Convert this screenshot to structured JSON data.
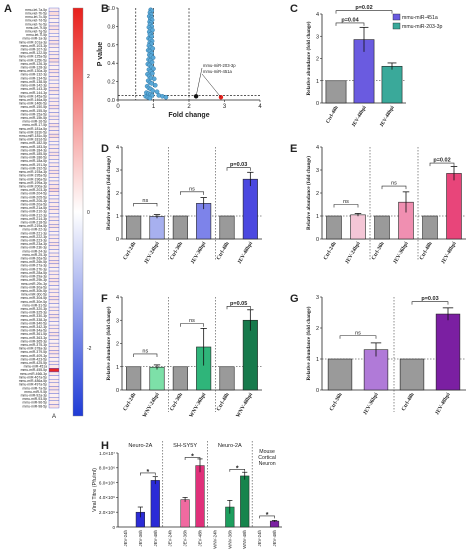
{
  "chart_data": [
    {
      "id": "A",
      "type": "heatmap",
      "panel_label": "A",
      "x_label": "A",
      "rows": [
        "mmu-let-7a-5p",
        "mmu-let-7b-5p",
        "mmu-let-7c-5p",
        "mmu-let-7d-5p",
        "mmu-let-7e-5p",
        "mmu-let-7f-5p",
        "mmu-let-7g-5p",
        "mmu-let-7i-5p",
        "mmu-miR-1a-3p",
        "mmu-miR-101a-3p",
        "mmu-miR-103-3p",
        "mmu-miR-107-3p",
        "mmu-miR-122-5p",
        "mmu-miR-125a-5p",
        "mmu-miR-125b-5p",
        "mmu-miR-126-3p",
        "mmu-miR-128-3p",
        "mmu-miR-130a-3p",
        "mmu-miR-132-3p",
        "mmu-miR-134-5p",
        "mmu-miR-138-5p",
        "mmu-miR-142-3p",
        "mmu-miR-143-3p",
        "mmu-miR-144-3p",
        "mmu-miR-145a-5p",
        "mmu-miR-146a-5p",
        "mmu-miR-146b-5p",
        "mmu-miR-150-5p",
        "mmu-miR-155-5p",
        "mmu-miR-15a-5p",
        "mmu-miR-15b-5p",
        "mmu-miR-16-5p",
        "mmu-miR-17-5p",
        "mmu-miR-181a-5p",
        "mmu-miR-181b-5p",
        "mmu-miR-181c-5p",
        "mmu-miR-181d-5p",
        "mmu-miR-182-5p",
        "mmu-miR-183-5p",
        "mmu-miR-184-3p",
        "mmu-miR-185-5p",
        "mmu-miR-186-5p",
        "mmu-miR-18a-5p",
        "mmu-miR-191-5p",
        "mmu-miR-192-5p",
        "mmu-miR-193a-3p",
        "mmu-miR-195a-5p",
        "mmu-miR-196a-5p",
        "mmu-miR-199a-3p",
        "mmu-miR-200a-3p",
        "mmu-miR-203-3p",
        "mmu-miR-204-5p",
        "mmu-miR-205-5p",
        "mmu-miR-206-3p",
        "mmu-miR-20a-5p",
        "mmu-miR-21a-5p",
        "mmu-miR-210-3p",
        "mmu-miR-212-3p",
        "mmu-miR-214-3p",
        "mmu-miR-218-5p",
        "mmu-miR-219a-5p",
        "mmu-miR-22-3p",
        "mmu-miR-221-3p",
        "mmu-miR-222-3p",
        "mmu-miR-223-3p",
        "mmu-miR-23a-3p",
        "mmu-miR-23b-3p",
        "mmu-miR-24-3p",
        "mmu-miR-25-3p",
        "mmu-miR-26a-5p",
        "mmu-miR-26b-5p",
        "mmu-miR-27a-3p",
        "mmu-miR-27b-3p",
        "mmu-miR-28a-5p",
        "mmu-miR-29a-3p",
        "mmu-miR-29b-3p",
        "mmu-miR-29c-3p",
        "mmu-miR-30a-5p",
        "mmu-miR-30b-5p",
        "mmu-miR-30c-5p",
        "mmu-miR-30d-5p",
        "mmu-miR-30e-5p",
        "mmu-miR-31-5p",
        "mmu-miR-320-3p",
        "mmu-miR-325-3p",
        "mmu-miR-330-3p",
        "mmu-miR-338-3p",
        "mmu-miR-340-5p",
        "mmu-miR-342-3p",
        "mmu-miR-34a-5p",
        "mmu-miR-361-5p",
        "mmu-miR-363-3p",
        "mmu-miR-365-3p",
        "mmu-miR-375-3p",
        "mmu-miR-378a-3p",
        "mmu-miR-379-5p",
        "mmu-miR-409-3p",
        "mmu-miR-423-5p",
        "mmu-miR-425-5p",
        "mmu-miR-451a",
        "mmu-miR-455-5p",
        "mmu-miR-466i-3p",
        "mmu-miR-467a-5p",
        "mmu-miR-486a-5p",
        "mmu-miR-497a-5p",
        "mmu-miR-7a-5p",
        "mmu-miR-9-5p",
        "mmu-miR-92a-3p",
        "mmu-miR-93-5p",
        "mmu-miR-96-5p",
        "mmu-miR-98-5p"
      ],
      "values": [
        0.3,
        0.5,
        0.3,
        0.2,
        0.3,
        0.4,
        0.3,
        0.2,
        0.3,
        0.4,
        0.3,
        0.2,
        0.3,
        0.3,
        0.5,
        0.3,
        0.2,
        0.4,
        0.3,
        0.3,
        0.2,
        0.3,
        0.4,
        0.3,
        0.2,
        0.3,
        0.3,
        0.4,
        0.2,
        0.3,
        0.3,
        0.2,
        0.4,
        0.3,
        0.3,
        0.5,
        0.3,
        0.2,
        0.3,
        0.3,
        0.4,
        0.3,
        0.2,
        0.3,
        0.3,
        0.4,
        0.3,
        0.2,
        0.3,
        0.4,
        0.6,
        0.3,
        0.2,
        0.3,
        0.3,
        0.4,
        0.3,
        0.2,
        0.3,
        0.3,
        0.4,
        0.3,
        0.2,
        0.3,
        0.3,
        0.4,
        0.3,
        0.2,
        0.3,
        0.3,
        0.4,
        0.3,
        0.2,
        0.3,
        0.3,
        0.4,
        0.3,
        0.2,
        0.3,
        0.3,
        0.4,
        0.3,
        0.2,
        0.3,
        0.3,
        0.4,
        0.3,
        0.2,
        0.3,
        0.3,
        0.4,
        0.3,
        0.2,
        0.3,
        0.3,
        0.4,
        0.3,
        0.2,
        0.3,
        0.3,
        2.9,
        0.3,
        0.2,
        0.3,
        0.3,
        0.4,
        0.3,
        0.2,
        0.3,
        0.3,
        0.4,
        0.3
      ],
      "color_scale": {
        "min": -3,
        "max": 3,
        "ticks": [
          2,
          0,
          -2
        ],
        "low_color": "#1f3bd6",
        "mid_color": "#ffffff",
        "high_color": "#e8201c"
      }
    },
    {
      "id": "B",
      "type": "scatter",
      "panel_label": "B",
      "xlabel": "Fold change",
      "ylabel": "P value",
      "xlim": [
        0,
        4
      ],
      "ylim": [
        0,
        1
      ],
      "xticks": [
        0,
        1,
        2,
        3,
        4
      ],
      "yticks": [
        "0.0",
        "0.2",
        "0.4",
        "0.6",
        "0.8",
        "1.0"
      ],
      "vlines": [
        0.5,
        1,
        2
      ],
      "hline": 0.05,
      "points": [
        [
          0.92,
          0.98
        ],
        [
          0.95,
          0.97
        ],
        [
          0.9,
          0.95
        ],
        [
          0.93,
          0.93
        ],
        [
          0.88,
          0.91
        ],
        [
          0.94,
          0.9
        ],
        [
          0.91,
          0.88
        ],
        [
          0.96,
          0.87
        ],
        [
          0.89,
          0.85
        ],
        [
          0.93,
          0.84
        ],
        [
          0.9,
          0.82
        ],
        [
          0.95,
          0.8
        ],
        [
          0.87,
          0.79
        ],
        [
          0.92,
          0.77
        ],
        [
          0.97,
          0.76
        ],
        [
          0.88,
          0.74
        ],
        [
          0.93,
          0.72
        ],
        [
          0.9,
          0.71
        ],
        [
          0.95,
          0.69
        ],
        [
          0.86,
          0.67
        ],
        [
          0.91,
          0.66
        ],
        [
          0.96,
          0.64
        ],
        [
          0.89,
          0.62
        ],
        [
          0.94,
          0.61
        ],
        [
          0.87,
          0.59
        ],
        [
          0.92,
          0.57
        ],
        [
          0.98,
          0.56
        ],
        [
          0.85,
          0.54
        ],
        [
          0.9,
          0.53
        ],
        [
          0.95,
          0.51
        ],
        [
          0.88,
          0.49
        ],
        [
          0.93,
          0.48
        ],
        [
          0.99,
          0.46
        ],
        [
          0.86,
          0.44
        ],
        [
          0.91,
          0.43
        ],
        [
          0.96,
          0.41
        ],
        [
          0.84,
          0.39
        ],
        [
          0.89,
          0.38
        ],
        [
          0.94,
          0.36
        ],
        [
          1.0,
          0.34
        ],
        [
          0.87,
          0.33
        ],
        [
          0.92,
          0.31
        ],
        [
          0.97,
          0.29
        ],
        [
          0.83,
          0.28
        ],
        [
          0.88,
          0.26
        ],
        [
          0.93,
          0.24
        ],
        [
          1.02,
          0.23
        ],
        [
          0.85,
          0.21
        ],
        [
          0.9,
          0.19
        ],
        [
          0.95,
          0.18
        ],
        [
          1.05,
          0.16
        ],
        [
          0.82,
          0.15
        ],
        [
          0.87,
          0.13
        ],
        [
          0.92,
          0.12
        ],
        [
          0.98,
          0.1
        ],
        [
          1.1,
          0.09
        ],
        [
          0.8,
          0.08
        ],
        [
          0.86,
          0.07
        ],
        [
          0.91,
          0.06
        ],
        [
          0.96,
          0.05
        ],
        [
          1.15,
          0.05
        ],
        [
          1.25,
          0.04
        ],
        [
          0.78,
          0.04
        ],
        [
          0.84,
          0.03
        ],
        [
          1.35,
          0.03
        ],
        [
          0.9,
          0.02
        ]
      ],
      "highlight_points": [
        {
          "x": 2.2,
          "y": 0.04,
          "color": "#111111"
        },
        {
          "x": 2.9,
          "y": 0.03,
          "color": "#e8201c"
        }
      ],
      "annotations": [
        "mmu-miR-203-3p",
        "mmu-miR-451a"
      ],
      "point_color": "#5aa9d8"
    },
    {
      "id": "C",
      "type": "bar",
      "panel_label": "C",
      "ylabel": "Relative abundance (fold change)",
      "categories": [
        "Ctrl-48h",
        "JEV-48hpi",
        "JEV-48hpi"
      ],
      "values": [
        1.0,
        2.85,
        1.65
      ],
      "errors": [
        0,
        0.55,
        0.15
      ],
      "colors": [
        "#9a9a9a",
        "#6a5be0",
        "#3aa99a"
      ],
      "ylim": [
        0,
        4
      ],
      "yticks": [
        0,
        1,
        2,
        3,
        4
      ],
      "refline": 1,
      "brackets": [
        {
          "from": 0,
          "to": 1,
          "text": "p=0.04",
          "level": 3.6
        },
        {
          "from": 0,
          "to": 2,
          "text": "p=0.02",
          "level": 4.15
        }
      ],
      "legend": [
        {
          "label": "mmu-miR-451a",
          "color": "#6a5be0"
        },
        {
          "label": "mmu-miR-203-3p",
          "color": "#3aa99a"
        }
      ]
    },
    {
      "id": "D",
      "type": "bar",
      "panel_label": "D",
      "ylabel": "Relative abundance (fold change)",
      "categories": [
        "Ctrl-24h",
        "JEV-24hpi",
        "Ctrl-36h",
        "JEV-36hpi",
        "Ctrl-48h",
        "JEV-48hpi"
      ],
      "values": [
        1.0,
        0.98,
        1.0,
        1.55,
        1.0,
        2.6
      ],
      "errors": [
        0,
        0.08,
        0,
        0.25,
        0,
        0.3
      ],
      "colors": [
        "#9a9a9a",
        "#a7b0ef",
        "#9a9a9a",
        "#7d83ea",
        "#9a9a9a",
        "#4b48e0"
      ],
      "ylim": [
        0,
        4
      ],
      "yticks": [
        0,
        1,
        2,
        3,
        4
      ],
      "refline": 1,
      "separators": [
        1.5,
        3.5
      ],
      "brackets": [
        {
          "from": 0,
          "to": 1,
          "text": "ns",
          "level": 1.55
        },
        {
          "from": 2,
          "to": 3,
          "text": "ns",
          "level": 2.05
        },
        {
          "from": 4,
          "to": 5,
          "text": "p=0.03",
          "level": 3.1
        }
      ]
    },
    {
      "id": "E",
      "type": "bar",
      "panel_label": "E",
      "ylabel": "Relative abundance (fold change)",
      "categories": [
        "Ctrl-24h",
        "JEV-24hpi",
        "Ctrl-36h",
        "JEV-36hpi",
        "Ctrl-48h",
        "JEV-48hpi"
      ],
      "values": [
        1.0,
        1.05,
        1.0,
        1.6,
        1.0,
        2.85
      ],
      "errors": [
        0,
        0.06,
        0,
        0.45,
        0,
        0.3
      ],
      "colors": [
        "#9a9a9a",
        "#f4c6d6",
        "#9a9a9a",
        "#f08fb1",
        "#9a9a9a",
        "#e8457a"
      ],
      "ylim": [
        0,
        4
      ],
      "yticks": [
        0,
        1,
        2,
        3,
        4
      ],
      "refline": 1,
      "separators": [
        1.5,
        3.5
      ],
      "brackets": [
        {
          "from": 0,
          "to": 1,
          "text": "ns",
          "level": 1.5
        },
        {
          "from": 2,
          "to": 3,
          "text": "ns",
          "level": 2.3
        },
        {
          "from": 4,
          "to": 5,
          "text": "p=0.02",
          "level": 3.3
        }
      ]
    },
    {
      "id": "F",
      "type": "bar",
      "panel_label": "F",
      "ylabel": "Relative abundance (fold change)",
      "categories": [
        "Ctrl-24h",
        "WNV-24hpi",
        "Ctrl-36h",
        "WNV-36hpi",
        "Ctrl-48h",
        "WNV-48hpi"
      ],
      "values": [
        1.0,
        0.98,
        1.0,
        1.85,
        1.0,
        3.0
      ],
      "errors": [
        0,
        0.1,
        0,
        0.8,
        0,
        0.45
      ],
      "colors": [
        "#9a9a9a",
        "#7de0a8",
        "#9a9a9a",
        "#2fb57a",
        "#9a9a9a",
        "#177a4c"
      ],
      "ylim": [
        0,
        4
      ],
      "yticks": [
        0,
        1,
        2,
        3,
        4
      ],
      "refline": 1,
      "separators": [
        1.5,
        3.5
      ],
      "brackets": [
        {
          "from": 0,
          "to": 1,
          "text": "ns",
          "level": 1.55
        },
        {
          "from": 2,
          "to": 3,
          "text": "ns",
          "level": 2.85
        },
        {
          "from": 4,
          "to": 5,
          "text": "p=0.05",
          "level": 3.6
        }
      ]
    },
    {
      "id": "G",
      "type": "bar",
      "panel_label": "G",
      "ylabel": "Relative abundance (fold change)",
      "categories": [
        "Ctrl-36h",
        "JEV-36hpi",
        "Ctrl-48h",
        "JEV-48hpi"
      ],
      "values": [
        1.0,
        1.3,
        1.0,
        2.45
      ],
      "errors": [
        0,
        0.22,
        0,
        0.2
      ],
      "colors": [
        "#9a9a9a",
        "#b07ad8",
        "#9a9a9a",
        "#7b1fa2"
      ],
      "ylim": [
        0,
        3
      ],
      "yticks": [
        0,
        1,
        2,
        3
      ],
      "refline": 1,
      "separators": [
        1.5
      ],
      "brackets": [
        {
          "from": 0,
          "to": 1,
          "text": "ns",
          "level": 1.75
        },
        {
          "from": 2,
          "to": 3,
          "text": "p=0.03",
          "level": 2.85
        }
      ]
    },
    {
      "id": "H",
      "type": "bar",
      "panel_label": "H",
      "ylabel": "Viral Titre (Pfu/ml)",
      "ylim": [
        0,
        10000000
      ],
      "yticks": [
        0,
        2000000,
        4000000,
        6000000,
        8000000,
        10000000
      ],
      "ytick_labels": [
        "0",
        "2.0×10⁶",
        "4.0×10⁶",
        "6.0×10⁶",
        "8.0×10⁶",
        "1.0×10⁷"
      ],
      "categories": [
        "JEV-24h",
        "JEV-36h",
        "JEV-48h",
        "JEV-24h",
        "JEV-36h",
        "JEV-48h",
        "WNV-24h",
        "WNV-36h",
        "WNV-48h",
        "JEV-24h",
        "JEV-48h"
      ],
      "values": [
        0,
        2000000,
        6300000,
        0,
        3700000,
        8300000,
        0,
        2700000,
        6900000,
        0,
        800000
      ],
      "errors": [
        0,
        700000,
        500000,
        0,
        300000,
        900000,
        0,
        900000,
        500000,
        0,
        100000
      ],
      "colors": [
        "#2b2bd6",
        "#2b2bd6",
        "#2b2bd6",
        "#f06aa0",
        "#f06aa0",
        "#e0307a",
        "#1d9e5e",
        "#1d9e5e",
        "#16844c",
        "#7b1fa2",
        "#7b1fa2"
      ],
      "groups": [
        {
          "label": "Neuro-2A",
          "start": 0,
          "end": 2
        },
        {
          "label": "SH-SY5Y",
          "start": 3,
          "end": 5
        },
        {
          "label": "Neuro-2A",
          "start": 6,
          "end": 8
        },
        {
          "label": "Mouse Cortical Neuron",
          "start": 9,
          "end": 10
        }
      ],
      "brackets": [
        {
          "from": 1,
          "to": 2,
          "text": "*",
          "level": 7300000
        },
        {
          "from": 4,
          "to": 5,
          "text": "*",
          "level": 9400000
        },
        {
          "from": 7,
          "to": 8,
          "text": "*",
          "level": 7800000
        },
        {
          "from": 9,
          "to": 10,
          "text": "*",
          "level": 1500000
        }
      ]
    }
  ]
}
